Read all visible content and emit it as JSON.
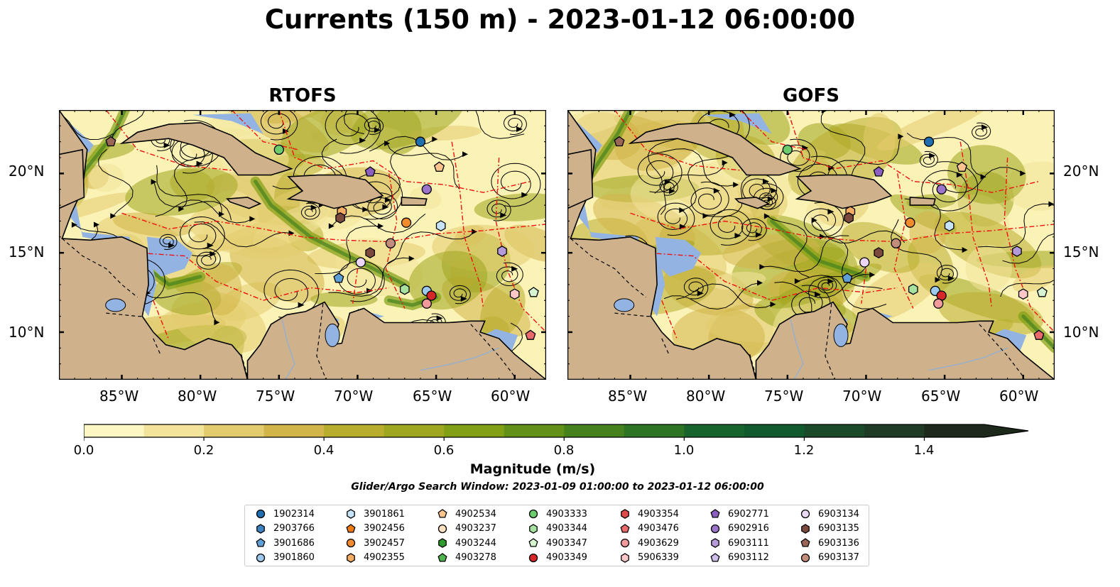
{
  "title": "Currents (150 m) - 2023-01-12 06:00:00",
  "panels": [
    {
      "id": "rtofs",
      "title": "RTOFS"
    },
    {
      "id": "gofs",
      "title": "GOFS"
    }
  ],
  "axes": {
    "lon_ticks": [
      "85°W",
      "80°W",
      "75°W",
      "70°W",
      "65°W",
      "60°W"
    ],
    "lat_ticks": [
      "20°N",
      "15°N",
      "10°N"
    ],
    "lon_range": [
      -89,
      -58
    ],
    "lat_range": [
      7,
      24
    ]
  },
  "colorbar": {
    "label": "Magnitude (m/s)",
    "ticks": [
      "0.0",
      "0.2",
      "0.4",
      "0.6",
      "0.8",
      "1.0",
      "1.2",
      "1.4"
    ],
    "range": [
      0,
      1.5
    ],
    "extend": "max",
    "colors": [
      "#fdf7c3",
      "#f3e49b",
      "#e3cc6d",
      "#d1b548",
      "#b9ad2e",
      "#9fa61f",
      "#82a015",
      "#619119",
      "#45821e",
      "#2d7425",
      "#17652c",
      "#105a2d",
      "#1a4a2a",
      "#1f3a25",
      "#1d2a1b"
    ]
  },
  "search_window": "Glider/Argo Search Window: 2023-01-09 01:00:00 to 2023-01-12 06:00:00",
  "colors": {
    "ocean": "#fbf2b6",
    "land": "#cfb28c",
    "shallow": "#93b4e2",
    "eez": "#ee1111"
  },
  "legend": [
    {
      "id": "1902314",
      "marker": "circle",
      "color": "#1f6fb0"
    },
    {
      "id": "2903766",
      "marker": "hexagon",
      "color": "#3f83c0"
    },
    {
      "id": "3901686",
      "marker": "pentagon",
      "color": "#5e9fd6"
    },
    {
      "id": "3901860",
      "marker": "circle",
      "color": "#9ec9ee"
    },
    {
      "id": "3901861",
      "marker": "hexagon",
      "color": "#c6e3f8"
    },
    {
      "id": "3902456",
      "marker": "pentagon",
      "color": "#f07a12"
    },
    {
      "id": "3902457",
      "marker": "circle",
      "color": "#f38b2c"
    },
    {
      "id": "4902355",
      "marker": "hexagon",
      "color": "#f8ad64"
    },
    {
      "id": "4902534",
      "marker": "pentagon",
      "color": "#fbc48e"
    },
    {
      "id": "4903237",
      "marker": "circle",
      "color": "#fde0c2"
    },
    {
      "id": "4903244",
      "marker": "hexagon",
      "color": "#2e9a2e"
    },
    {
      "id": "4903278",
      "marker": "pentagon",
      "color": "#4fb44f"
    },
    {
      "id": "4903333",
      "marker": "circle",
      "color": "#6ccb6c"
    },
    {
      "id": "4903344",
      "marker": "hexagon",
      "color": "#a6e1a0"
    },
    {
      "id": "4903347",
      "marker": "pentagon",
      "color": "#d5f4cf"
    },
    {
      "id": "4903349",
      "marker": "circle",
      "color": "#d62728"
    },
    {
      "id": "4903354",
      "marker": "hexagon",
      "color": "#e04a4b"
    },
    {
      "id": "4903476",
      "marker": "pentagon",
      "color": "#ea6a6b"
    },
    {
      "id": "4903629",
      "marker": "circle",
      "color": "#f29a9b"
    },
    {
      "id": "5906339",
      "marker": "hexagon",
      "color": "#fbc7c7"
    },
    {
      "id": "6902771",
      "marker": "pentagon",
      "color": "#8a5fbf"
    },
    {
      "id": "6902916",
      "marker": "circle",
      "color": "#9c74c9"
    },
    {
      "id": "6903111",
      "marker": "hexagon",
      "color": "#b59ad9"
    },
    {
      "id": "6903112",
      "marker": "pentagon",
      "color": "#cdbbea"
    },
    {
      "id": "6903134",
      "marker": "circle",
      "color": "#ecd8f6"
    },
    {
      "id": "6903135",
      "marker": "hexagon",
      "color": "#7b4a3c"
    },
    {
      "id": "6903136",
      "marker": "pentagon",
      "color": "#9a6656"
    },
    {
      "id": "6903137",
      "marker": "circle",
      "color": "#c28c7c"
    }
  ],
  "floats": [
    {
      "id": "6903136",
      "rtofs": [
        -85.7,
        22.0
      ],
      "gofs": [
        -85.7,
        22.0
      ]
    },
    {
      "id": "4903333",
      "rtofs": [
        -75.0,
        21.5
      ],
      "gofs": [
        -75.0,
        21.5
      ]
    },
    {
      "id": "1902314",
      "rtofs": [
        -66.0,
        22.0
      ],
      "gofs": [
        -66.0,
        22.0
      ]
    },
    {
      "id": "6902771",
      "rtofs": [
        -69.2,
        20.1
      ],
      "gofs": [
        -69.2,
        20.1
      ]
    },
    {
      "id": "4902534",
      "rtofs": [
        -64.8,
        20.4
      ],
      "gofs": [
        -63.9,
        20.4
      ]
    },
    {
      "id": "6902916",
      "rtofs": [
        -65.6,
        19.0
      ],
      "gofs": [
        -65.2,
        19.0
      ]
    },
    {
      "id": "4902355",
      "rtofs": [
        -71.0,
        17.6
      ],
      "gofs": [
        -71.0,
        17.6
      ]
    },
    {
      "id": "6903135",
      "rtofs": [
        -71.1,
        17.2
      ],
      "gofs": [
        -71.1,
        17.2
      ]
    },
    {
      "id": "3902457",
      "rtofs": [
        -66.9,
        16.9
      ],
      "gofs": [
        -67.2,
        16.9
      ]
    },
    {
      "id": "3901861",
      "rtofs": [
        -64.7,
        16.7
      ],
      "gofs": [
        -64.7,
        16.7
      ]
    },
    {
      "id": "6903111",
      "rtofs": [
        -60.8,
        15.1
      ],
      "gofs": [
        -60.4,
        15.1
      ]
    },
    {
      "id": "6903137",
      "rtofs": [
        -67.9,
        15.6
      ],
      "gofs": [
        -68.1,
        15.6
      ]
    },
    {
      "id": "6903135",
      "rtofs": [
        -69.2,
        15.0
      ],
      "gofs": [
        -69.2,
        15.0
      ]
    },
    {
      "id": "6903134",
      "rtofs": [
        -69.8,
        14.4
      ],
      "gofs": [
        -70.1,
        14.4
      ]
    },
    {
      "id": "3901686",
      "rtofs": [
        -71.2,
        13.4
      ],
      "gofs": [
        -71.2,
        13.4
      ]
    },
    {
      "id": "4903344",
      "rtofs": [
        -67.0,
        12.7
      ],
      "gofs": [
        -67.0,
        12.7
      ]
    },
    {
      "id": "3901860",
      "rtofs": [
        -65.6,
        12.6
      ],
      "gofs": [
        -65.6,
        12.6
      ]
    },
    {
      "id": "4903349",
      "rtofs": [
        -65.3,
        12.3
      ],
      "gofs": [
        -65.2,
        12.3
      ]
    },
    {
      "id": "4903629",
      "rtofs": [
        -65.6,
        11.8
      ],
      "gofs": [
        -65.4,
        11.8
      ]
    },
    {
      "id": "4903347",
      "rtofs": [
        -58.8,
        12.5
      ],
      "gofs": [
        -58.8,
        12.5
      ]
    },
    {
      "id": "5906339",
      "rtofs": [
        -60.0,
        12.4
      ],
      "gofs": [
        -60.0,
        12.4
      ]
    },
    {
      "id": "4903476",
      "rtofs": [
        -59.0,
        9.8
      ],
      "gofs": [
        -59.0,
        9.8
      ]
    }
  ]
}
